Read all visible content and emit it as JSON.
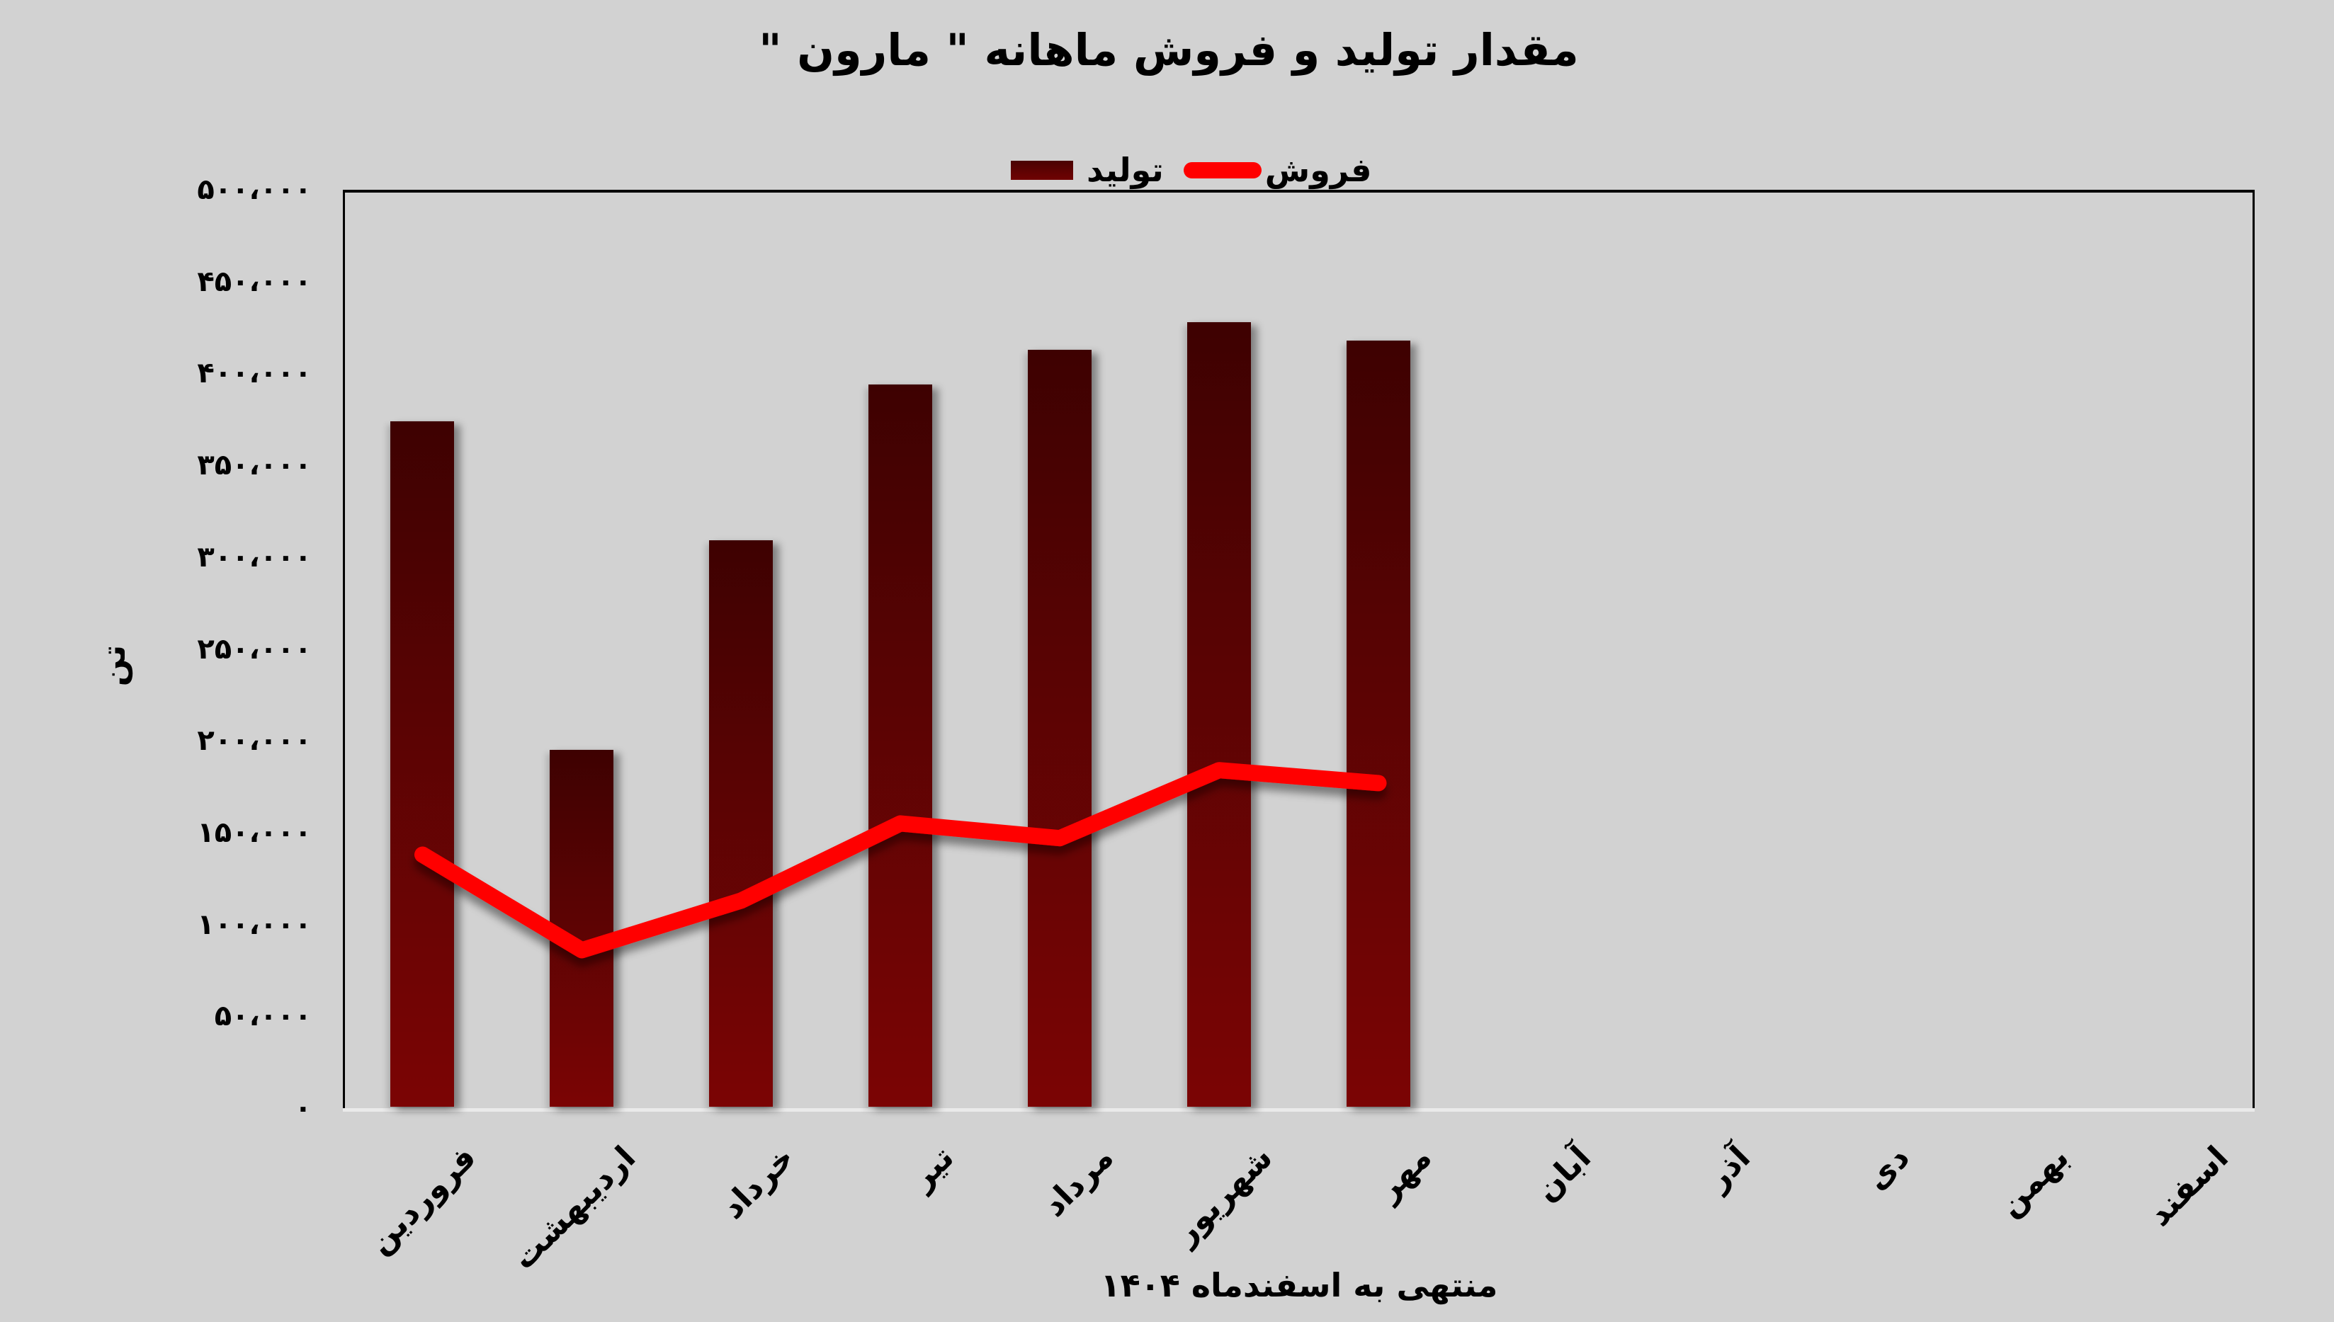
{
  "title": "مقدار تولید و فروش ماهانه \" مارون \"",
  "footer_note": "منتهی به اسفندماه ۱۴۰۴",
  "legend": {
    "production_label": "تولید",
    "sales_label": "فروش"
  },
  "y_axis": {
    "title": "تن",
    "tick_labels_top_to_bottom": [
      "۵۰۰،۰۰۰",
      "۴۵۰،۰۰۰",
      "۴۰۰،۰۰۰",
      "۳۵۰،۰۰۰",
      "۳۰۰،۰۰۰",
      "۲۵۰،۰۰۰",
      "۲۰۰،۰۰۰",
      "۱۵۰،۰۰۰",
      "۱۰۰،۰۰۰",
      "۵۰،۰۰۰",
      "۰"
    ]
  },
  "colors": {
    "background": "#d2d2d2",
    "bar_gradient_top": "#3e0101",
    "bar_gradient_bottom": "#7b0404",
    "sales_line": "#ff0000",
    "gridline": "#e3e3e3",
    "text": "#000000"
  },
  "chart_data": {
    "type": "bar",
    "title": "مقدار تولید و فروش ماهانه \" مارون \"",
    "xlabel": "منتهی به اسفندماه ۱۴۰۴",
    "ylabel": "تن",
    "ylim": [
      0,
      500000
    ],
    "ytick_step": 50000,
    "grid": true,
    "legend_position": "top-center",
    "categories": [
      "فروردین",
      "اردیبهشت",
      "خرداد",
      "تیر",
      "مرداد",
      "شهریور",
      "مهر",
      "آبان",
      "آذر",
      "دی",
      "بهمن",
      "اسفند"
    ],
    "series": [
      {
        "name": "تولید",
        "type": "bar",
        "color": "#6b0202",
        "values": [
          374000,
          195000,
          309000,
          394000,
          413000,
          428000,
          418000,
          null,
          null,
          null,
          null,
          null
        ]
      },
      {
        "name": "فروش",
        "type": "line",
        "color": "#ff0000",
        "values": [
          138000,
          86000,
          113000,
          155000,
          147000,
          184000,
          177000,
          null,
          null,
          null,
          null,
          null
        ]
      }
    ]
  }
}
